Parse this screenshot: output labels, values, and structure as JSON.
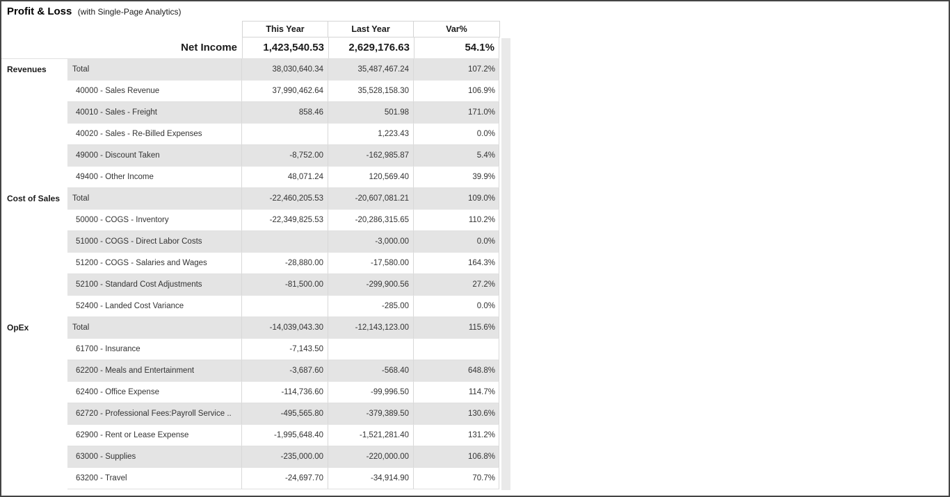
{
  "ui": {
    "title": "Profit & Loss",
    "subtitle": "(with Single-Page Analytics)"
  },
  "colors": {
    "row_banding": "#e4e4e4",
    "grid_border": "#d8d8d8",
    "scrollbar_track": "#e9e9e9",
    "text": "#333333",
    "frame_border": "#454545"
  },
  "chart_data": {
    "type": "table",
    "title": "Profit & Loss (with Single-Page Analytics)",
    "columns": [
      "This Year",
      "Last Year",
      "Var%"
    ],
    "summary_row": {
      "label": "Net Income",
      "this_year": "1,423,540.53",
      "last_year": "2,629,176.63",
      "var_pct": "54.1%"
    },
    "sections": [
      {
        "name": "Revenues",
        "rows": [
          {
            "label": "Total",
            "is_total": true,
            "this_year": "38,030,640.34",
            "last_year": "35,487,467.24",
            "var_pct": "107.2%"
          },
          {
            "label": "40000 - Sales Revenue",
            "this_year": "37,990,462.64",
            "last_year": "35,528,158.30",
            "var_pct": "106.9%"
          },
          {
            "label": "40010 - Sales - Freight",
            "this_year": "858.46",
            "last_year": "501.98",
            "var_pct": "171.0%"
          },
          {
            "label": "40020 - Sales - Re-Billed Expenses",
            "this_year": "",
            "last_year": "1,223.43",
            "var_pct": "0.0%"
          },
          {
            "label": "49000 - Discount Taken",
            "this_year": "-8,752.00",
            "last_year": "-162,985.87",
            "var_pct": "5.4%"
          },
          {
            "label": "49400 - Other Income",
            "this_year": "48,071.24",
            "last_year": "120,569.40",
            "var_pct": "39.9%"
          }
        ]
      },
      {
        "name": "Cost of Sales",
        "rows": [
          {
            "label": "Total",
            "is_total": true,
            "this_year": "-22,460,205.53",
            "last_year": "-20,607,081.21",
            "var_pct": "109.0%"
          },
          {
            "label": "50000 - COGS - Inventory",
            "this_year": "-22,349,825.53",
            "last_year": "-20,286,315.65",
            "var_pct": "110.2%"
          },
          {
            "label": "51000 - COGS - Direct Labor Costs",
            "this_year": "",
            "last_year": "-3,000.00",
            "var_pct": "0.0%"
          },
          {
            "label": "51200 - COGS - Salaries and Wages",
            "this_year": "-28,880.00",
            "last_year": "-17,580.00",
            "var_pct": "164.3%"
          },
          {
            "label": "52100 - Standard Cost Adjustments",
            "this_year": "-81,500.00",
            "last_year": "-299,900.56",
            "var_pct": "27.2%"
          },
          {
            "label": "52400 - Landed Cost Variance",
            "this_year": "",
            "last_year": "-285.00",
            "var_pct": "0.0%"
          }
        ]
      },
      {
        "name": "OpEx",
        "rows": [
          {
            "label": "Total",
            "is_total": true,
            "this_year": "-14,039,043.30",
            "last_year": "-12,143,123.00",
            "var_pct": "115.6%"
          },
          {
            "label": "61700 - Insurance",
            "this_year": "-7,143.50",
            "last_year": "",
            "var_pct": ""
          },
          {
            "label": "62200 - Meals and Entertainment",
            "this_year": "-3,687.60",
            "last_year": "-568.40",
            "var_pct": "648.8%"
          },
          {
            "label": "62400 - Office Expense",
            "this_year": "-114,736.60",
            "last_year": "-99,996.50",
            "var_pct": "114.7%"
          },
          {
            "label": "62720 - Professional Fees:Payroll Service ..",
            "this_year": "-495,565.80",
            "last_year": "-379,389.50",
            "var_pct": "130.6%"
          },
          {
            "label": "62900 - Rent or Lease Expense",
            "this_year": "-1,995,648.40",
            "last_year": "-1,521,281.40",
            "var_pct": "131.2%"
          },
          {
            "label": "63000 - Supplies",
            "this_year": "-235,000.00",
            "last_year": "-220,000.00",
            "var_pct": "106.8%"
          },
          {
            "label": "63200 - Travel",
            "this_year": "-24,697.70",
            "last_year": "-34,914.90",
            "var_pct": "70.7%"
          }
        ]
      }
    ]
  }
}
